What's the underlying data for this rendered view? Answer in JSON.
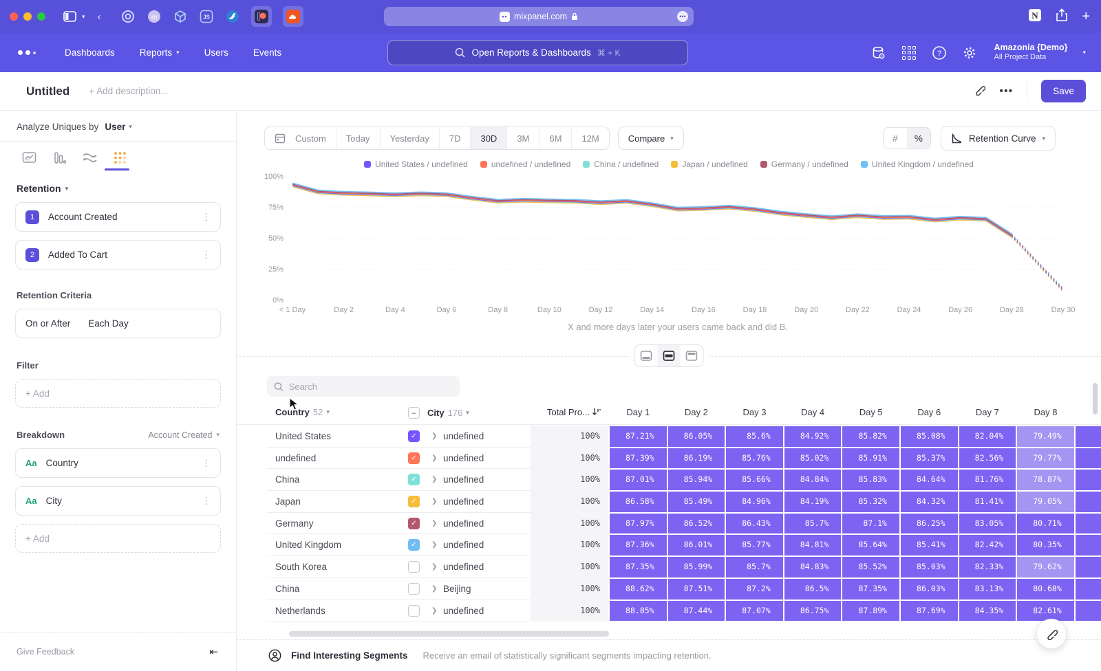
{
  "browser": {
    "url": "mixpanel.com"
  },
  "nav": {
    "links": [
      "Dashboards",
      "Reports",
      "Users",
      "Events"
    ],
    "search_placeholder": "Open Reports & Dashboards",
    "search_shortcut": "⌘ + K",
    "project": {
      "name": "Amazonia {Demo}",
      "scope": "All Project Data"
    }
  },
  "header": {
    "title": "Untitled",
    "description_placeholder": "+ Add description...",
    "save_label": "Save"
  },
  "sidebar": {
    "analyze_label": "Analyze Uniques by",
    "analyze_value": "User",
    "section_retention": "Retention",
    "steps": [
      {
        "num": "1",
        "label": "Account Created"
      },
      {
        "num": "2",
        "label": "Added To Cart"
      }
    ],
    "criteria_label": "Retention Criteria",
    "criteria_condition": "On or After",
    "criteria_interval": "Each Day",
    "filter_label": "Filter",
    "add_label": "+ Add",
    "breakdown_label": "Breakdown",
    "breakdown_scope": "Account Created",
    "breakdowns": [
      {
        "type": "Aa",
        "label": "Country"
      },
      {
        "type": "Aa",
        "label": "City"
      }
    ],
    "give_feedback": "Give Feedback"
  },
  "toolbar": {
    "ranges": [
      "Custom",
      "Today",
      "Yesterday",
      "7D",
      "30D",
      "3M",
      "6M",
      "12M"
    ],
    "active_range": "30D",
    "compare_label": "Compare",
    "unit_number": "#",
    "unit_percent": "%",
    "chart_type_label": "Retention Curve"
  },
  "chart_data": {
    "type": "line",
    "caption": "X and more days later your users came back and did B.",
    "ylim": [
      0,
      100
    ],
    "y_ticks": [
      "100%",
      "75%",
      "50%",
      "25%",
      "0%"
    ],
    "x_labels": [
      "< 1 Day",
      "Day 2",
      "Day 4",
      "Day 6",
      "Day 8",
      "Day 10",
      "Day 12",
      "Day 14",
      "Day 16",
      "Day 18",
      "Day 20",
      "Day 22",
      "Day 24",
      "Day 26",
      "Day 28",
      "Day 30"
    ],
    "dashed_from_index": 28,
    "draw_order": [
      3,
      2,
      0,
      1,
      4,
      5
    ],
    "series": [
      {
        "name": "United States / undefined",
        "color": "#7856ff",
        "values": [
          93.0,
          87.3,
          86.2,
          85.7,
          85.0,
          85.8,
          85.1,
          82.2,
          79.8,
          80.6,
          80.1,
          79.8,
          78.6,
          79.7,
          77.0,
          73.4,
          73.9,
          75.0,
          73.1,
          70.2,
          68.2,
          66.5,
          68.1,
          66.6,
          66.9,
          64.6,
          66.1,
          65.2,
          52.0,
          30.0,
          8.0
        ]
      },
      {
        "name": "undefined / undefined",
        "color": "#ff7557",
        "values": [
          93.4,
          87.7,
          86.6,
          86.1,
          85.4,
          86.2,
          85.5,
          82.6,
          80.2,
          81.0,
          80.5,
          80.2,
          79.0,
          80.1,
          77.4,
          73.8,
          74.3,
          75.4,
          73.5,
          70.6,
          68.6,
          66.9,
          68.5,
          67.0,
          67.3,
          65.0,
          66.5,
          65.6,
          52.4,
          30.4,
          8.4
        ]
      },
      {
        "name": "China / undefined",
        "color": "#80e1d9",
        "values": [
          92.6,
          86.9,
          85.8,
          85.3,
          84.6,
          85.4,
          84.7,
          81.8,
          79.4,
          80.2,
          79.7,
          79.4,
          78.2,
          79.3,
          76.6,
          73.0,
          73.5,
          74.6,
          72.7,
          69.8,
          67.8,
          66.1,
          67.7,
          66.2,
          66.5,
          64.2,
          65.7,
          64.8,
          51.6,
          29.6,
          7.6
        ]
      },
      {
        "name": "Japan / undefined",
        "color": "#f8bc3b",
        "values": [
          92.0,
          86.3,
          85.2,
          84.7,
          84.0,
          84.8,
          84.1,
          81.2,
          78.8,
          79.6,
          79.1,
          78.8,
          77.6,
          78.7,
          76.0,
          72.4,
          72.9,
          74.0,
          72.1,
          69.2,
          67.2,
          65.5,
          67.1,
          65.6,
          65.9,
          63.6,
          65.1,
          64.2,
          51.0,
          29.0,
          7.0
        ]
      },
      {
        "name": "Germany / undefined",
        "color": "#b2596e",
        "values": [
          93.9,
          88.2,
          87.1,
          86.6,
          85.9,
          86.7,
          86.0,
          83.1,
          80.7,
          81.5,
          81.0,
          80.7,
          79.5,
          80.6,
          77.9,
          74.3,
          74.8,
          75.9,
          74.0,
          71.1,
          69.1,
          67.4,
          69.0,
          67.5,
          67.8,
          65.5,
          67.0,
          66.1,
          52.9,
          30.9,
          8.9
        ]
      },
      {
        "name": "United Kingdom / undefined",
        "color": "#72bef4",
        "values": [
          94.8,
          89.1,
          88.0,
          87.5,
          86.8,
          87.6,
          86.9,
          84.0,
          81.6,
          82.4,
          81.9,
          81.6,
          80.4,
          81.5,
          78.8,
          75.2,
          75.7,
          76.8,
          74.9,
          72.0,
          70.0,
          68.3,
          69.9,
          68.4,
          68.7,
          66.4,
          67.9,
          67.0,
          53.8,
          31.8,
          9.8
        ]
      }
    ]
  },
  "table": {
    "search_placeholder": "Search",
    "country_col": {
      "label": "Country",
      "count": "52"
    },
    "city_col": {
      "label": "City",
      "count": "176"
    },
    "total_col": "Total Pro...",
    "day_cols": [
      "Day 1",
      "Day 2",
      "Day 3",
      "Day 4",
      "Day 5",
      "Day 6",
      "Day 7",
      "Day 8"
    ],
    "cell_colors": {
      "normal": "#7d63f1",
      "light": "#a495f2"
    },
    "rows": [
      {
        "country": "United States",
        "city": "undefined",
        "checked": true,
        "color": "#7856ff",
        "total": "100%",
        "days": [
          "87.21%",
          "86.05%",
          "85.6%",
          "84.92%",
          "85.82%",
          "85.08%",
          "82.04%",
          "79.49%"
        ]
      },
      {
        "country": "undefined",
        "city": "undefined",
        "checked": true,
        "color": "#ff7557",
        "total": "100%",
        "days": [
          "87.39%",
          "86.19%",
          "85.76%",
          "85.02%",
          "85.91%",
          "85.37%",
          "82.56%",
          "79.77%"
        ]
      },
      {
        "country": "China",
        "city": "undefined",
        "checked": true,
        "color": "#80e1d9",
        "total": "100%",
        "days": [
          "87.01%",
          "85.94%",
          "85.66%",
          "84.84%",
          "85.83%",
          "84.64%",
          "81.76%",
          "78.87%"
        ]
      },
      {
        "country": "Japan",
        "city": "undefined",
        "checked": true,
        "color": "#f8bc3b",
        "total": "100%",
        "days": [
          "86.58%",
          "85.49%",
          "84.96%",
          "84.19%",
          "85.32%",
          "84.32%",
          "81.41%",
          "79.05%"
        ]
      },
      {
        "country": "Germany",
        "city": "undefined",
        "checked": true,
        "color": "#b2596e",
        "total": "100%",
        "days": [
          "87.97%",
          "86.52%",
          "86.43%",
          "85.7%",
          "87.1%",
          "86.25%",
          "83.05%",
          "80.71%"
        ]
      },
      {
        "country": "United Kingdom",
        "city": "undefined",
        "checked": true,
        "color": "#72bef4",
        "total": "100%",
        "days": [
          "87.36%",
          "86.01%",
          "85.77%",
          "84.81%",
          "85.64%",
          "85.41%",
          "82.42%",
          "80.35%"
        ]
      },
      {
        "country": "South Korea",
        "city": "undefined",
        "checked": false,
        "color": "",
        "total": "100%",
        "days": [
          "87.35%",
          "85.99%",
          "85.7%",
          "84.83%",
          "85.52%",
          "85.03%",
          "82.33%",
          "79.62%"
        ]
      },
      {
        "country": "China",
        "city": "Beijing",
        "checked": false,
        "color": "",
        "total": "100%",
        "days": [
          "88.62%",
          "87.51%",
          "87.2%",
          "86.5%",
          "87.35%",
          "86.03%",
          "83.13%",
          "80.68%"
        ]
      },
      {
        "country": "Netherlands",
        "city": "undefined",
        "checked": false,
        "color": "",
        "total": "100%",
        "days": [
          "88.85%",
          "87.44%",
          "87.07%",
          "86.75%",
          "87.89%",
          "87.69%",
          "84.35%",
          "82.61%"
        ]
      }
    ]
  },
  "footer": {
    "title": "Find Interesting Segments",
    "subtitle": "Receive an email of statistically significant segments impacting retention."
  }
}
